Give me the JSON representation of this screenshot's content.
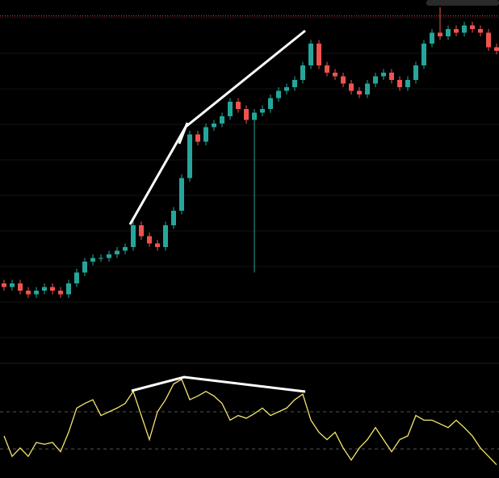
{
  "chart_data": [
    {
      "type": "candlestick",
      "ylim": [
        0,
        100
      ],
      "up_color": "#26a69a",
      "down_color": "#ef5350",
      "price_line": 95.6,
      "open": [
        22,
        21,
        22,
        20,
        19,
        20,
        21,
        20,
        19,
        22,
        25,
        28,
        29,
        29,
        30,
        31,
        32,
        38,
        35,
        33,
        32,
        38,
        42,
        51,
        63,
        61,
        65,
        66,
        68,
        72,
        70,
        67,
        69,
        70,
        73,
        75,
        76,
        78,
        82,
        88,
        82,
        80,
        79,
        77,
        75,
        74,
        77,
        79,
        80,
        78,
        76,
        78,
        82,
        88,
        91,
        90,
        92,
        91,
        93,
        92,
        91,
        87
      ],
      "high": [
        23,
        23,
        23,
        21,
        21,
        22,
        22,
        21,
        23,
        26,
        29,
        30,
        30,
        31,
        32,
        33,
        39,
        39,
        36,
        34,
        39,
        43,
        52,
        64,
        64,
        66,
        67,
        69,
        73,
        73,
        71,
        70,
        71,
        74,
        76,
        77,
        79,
        83,
        89,
        89,
        83,
        81,
        80,
        78,
        76,
        78,
        80,
        81,
        81,
        79,
        79,
        83,
        89,
        92,
        98,
        93,
        93,
        94,
        94,
        93,
        92,
        88
      ],
      "low": [
        20,
        20,
        19,
        18,
        18,
        19,
        19,
        18,
        18,
        21,
        24,
        27,
        28,
        28,
        29,
        30,
        31,
        34,
        32,
        31,
        31,
        37,
        41,
        50,
        60,
        60,
        64,
        65,
        67,
        69,
        66,
        25,
        68,
        69,
        72,
        74,
        75,
        77,
        81,
        81,
        79,
        78,
        76,
        74,
        73,
        73,
        76,
        78,
        77,
        75,
        75,
        77,
        81,
        87,
        89,
        89,
        90,
        90,
        91,
        90,
        86,
        85
      ],
      "close": [
        21,
        22,
        20,
        19,
        20,
        21,
        20,
        19,
        22,
        25,
        28,
        29,
        29,
        30,
        31,
        32,
        38,
        35,
        33,
        32,
        38,
        42,
        51,
        63,
        61,
        65,
        66,
        68,
        72,
        70,
        67,
        69,
        70,
        73,
        75,
        76,
        78,
        82,
        88,
        82,
        80,
        79,
        77,
        75,
        74,
        77,
        79,
        80,
        78,
        76,
        78,
        82,
        88,
        91,
        90,
        92,
        91,
        93,
        92,
        91,
        87,
        86
      ]
    },
    {
      "type": "line",
      "ylim": [
        0,
        110
      ],
      "color": "#f5e66e",
      "levels": [
        70,
        30
      ],
      "values": [
        44,
        22,
        31,
        22,
        37,
        35,
        37,
        27,
        48,
        74,
        79,
        83,
        66,
        70,
        74,
        79,
        92,
        66,
        40,
        70,
        83,
        100,
        105,
        83,
        87,
        92,
        87,
        79,
        61,
        66,
        63,
        68,
        74,
        66,
        70,
        74,
        83,
        89,
        61,
        48,
        40,
        48,
        31,
        18,
        31,
        40,
        53,
        40,
        27,
        40,
        44,
        66,
        61,
        61,
        57,
        53,
        61,
        53,
        44,
        31,
        22,
        13
      ]
    }
  ]
}
